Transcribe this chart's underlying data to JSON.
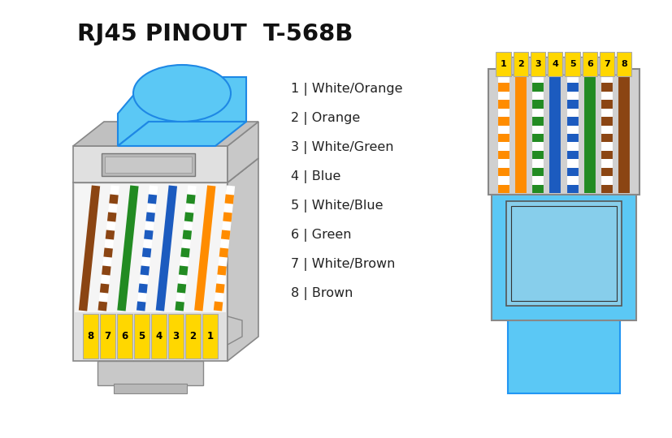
{
  "title": "RJ45 PINOUT  T-568B",
  "bg_color": "#FFFFFF",
  "pin_labels": [
    "1",
    "2",
    "3",
    "4",
    "5",
    "6",
    "7",
    "8"
  ],
  "pin_names": [
    "White/Orange",
    "Orange",
    "White/Green",
    "Blue",
    "White/Blue",
    "Green",
    "White/Brown",
    "Brown"
  ],
  "wire_colors_568b": [
    [
      "#FFFFFF",
      "#FF8C00"
    ],
    [
      "#FF8C00",
      "#FF8C00"
    ],
    [
      "#FFFFFF",
      "#228B22"
    ],
    [
      "#1C5BBF",
      "#1C5BBF"
    ],
    [
      "#FFFFFF",
      "#1C5BBF"
    ],
    [
      "#228B22",
      "#228B22"
    ],
    [
      "#FFFFFF",
      "#8B4513"
    ],
    [
      "#8B4513",
      "#8B4513"
    ]
  ],
  "yellow_pin": "#FFD700",
  "blue_cable": "#5BC8F5",
  "gray_light": "#E0E0E0",
  "gray_mid": "#C8C8C8",
  "gray_dark": "#A0A0A0",
  "orange_wire": "#FF8C00",
  "green_wire": "#228B22",
  "blue_wire": "#1C5BBF",
  "brown_wire": "#8B4513"
}
